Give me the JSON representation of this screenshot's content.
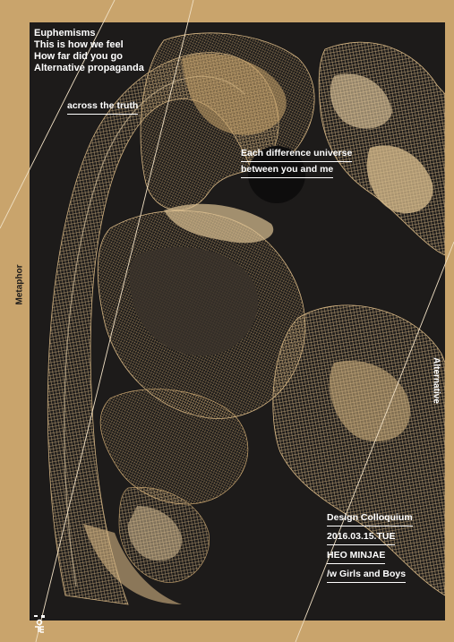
{
  "poster": {
    "headlines": [
      "Euphemisms",
      "This is how we feel",
      "How far did you go",
      "Alternative propaganda"
    ],
    "tagline": "across the truth",
    "center_lines": [
      "Each difference universe",
      "between you and me"
    ],
    "side_left": "Metaphor",
    "side_right": "Alternative",
    "event": {
      "title": "Design Colloquium",
      "date": "2016.03.15.TUE",
      "speaker": "HEO MINJAE",
      "with": "/w Girls and Boys"
    },
    "logo_icon": "logo-icon"
  },
  "colors": {
    "background": "#c9a46c",
    "panel": "#1d1b1a",
    "text": "#ffffff",
    "art": "#d6b684"
  }
}
